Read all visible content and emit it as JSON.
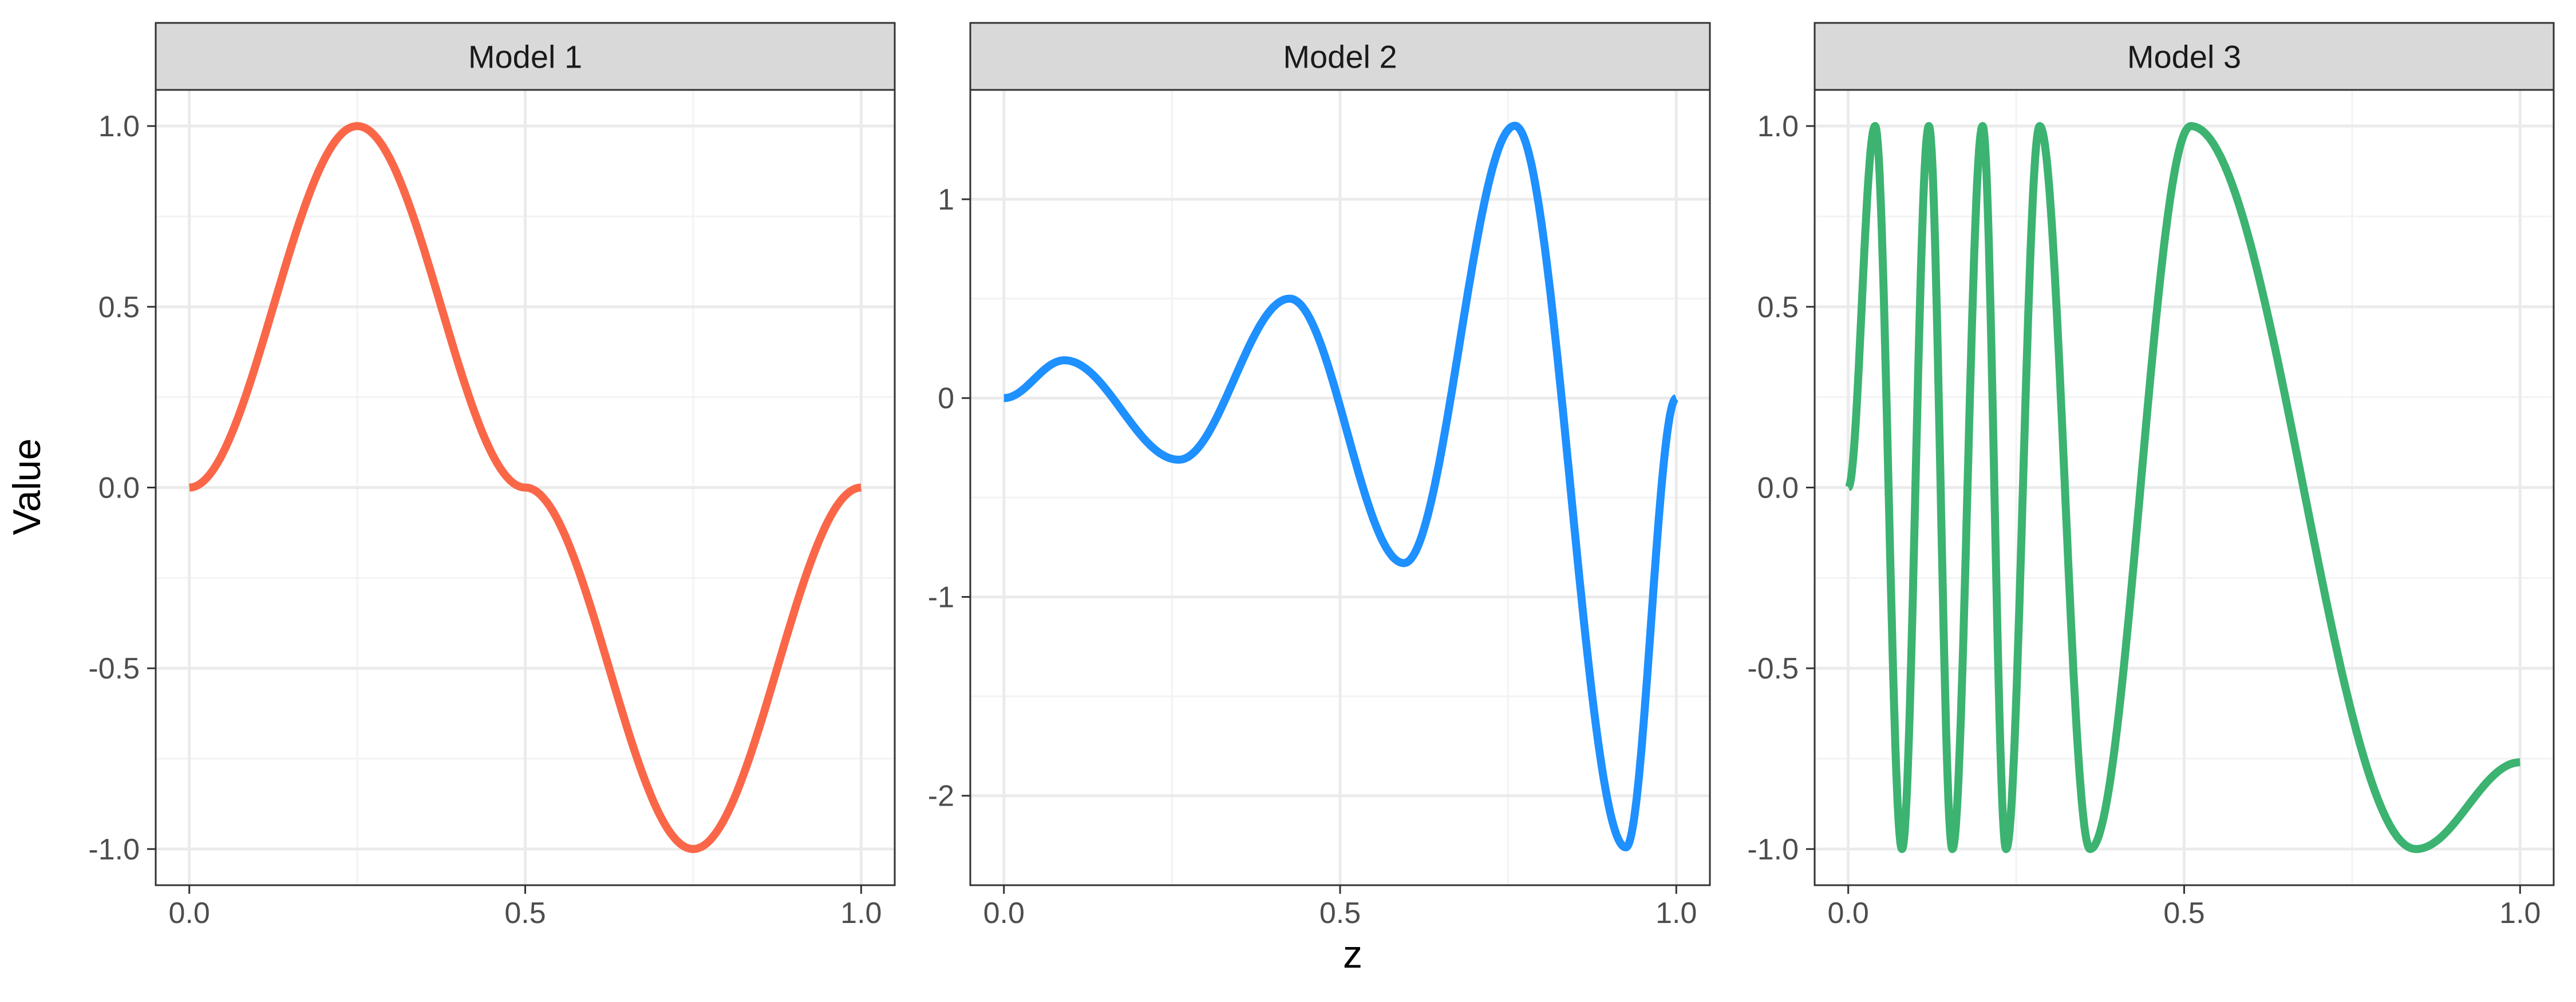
{
  "chart_data": {
    "type": "line",
    "xlabel": "z",
    "ylabel": "Value",
    "grid": true,
    "colors": {
      "panel_border": "#333333",
      "strip_fill": "#d9d9d9",
      "grid_major": "#ebebeb",
      "grid_minor": "#f3f3f3"
    },
    "panels": [
      {
        "title": "Model 1",
        "color": "#fa6748",
        "xlim": [
          -0.05,
          1.05
        ],
        "ylim": [
          -1.1,
          1.1
        ],
        "x_ticks": [
          "0.0",
          "0.5",
          "1.0"
        ],
        "y_ticks": [
          "-1.0",
          "-0.5",
          "0.0",
          "0.5",
          "1.0"
        ],
        "series": [
          {
            "x": [
              0,
              0.25,
              0.5,
              0.75,
              1.0
            ],
            "y": [
              0,
              1,
              0,
              -1,
              0
            ]
          }
        ]
      },
      {
        "title": "Model 2",
        "color": "#1e90ff",
        "xlim": [
          -0.05,
          1.05
        ],
        "ylim": [
          -2.45,
          1.55
        ],
        "x_ticks": [
          "0.0",
          "0.5",
          "1.0"
        ],
        "y_ticks": [
          "-2",
          "-1",
          "0",
          "1"
        ],
        "series": [
          {
            "x": [
              0,
              0.09,
              0.26,
              0.425,
              0.595,
              0.76,
              0.925,
              1.0
            ],
            "y": [
              0,
              0.19,
              -0.31,
              0.5,
              -0.83,
              1.37,
              -2.26,
              0
            ]
          }
        ]
      },
      {
        "title": "Model 3",
        "color": "#3cb371",
        "xlim": [
          -0.05,
          1.05
        ],
        "ylim": [
          -1.1,
          1.1
        ],
        "x_ticks": [
          "0.0",
          "0.5",
          "1.0"
        ],
        "y_ticks": [
          "-1.0",
          "-0.5",
          "0.0",
          "0.5",
          "1.0"
        ],
        "series": [
          {
            "x": [
              0,
              0.04,
              0.08,
              0.12,
              0.155,
              0.2,
              0.235,
              0.285,
              0.36,
              0.51,
              0.845,
              1.0
            ],
            "y": [
              0,
              1,
              -1,
              1,
              -1,
              1,
              -1,
              1,
              -1,
              1,
              -1,
              -0.76
            ]
          }
        ]
      }
    ]
  }
}
